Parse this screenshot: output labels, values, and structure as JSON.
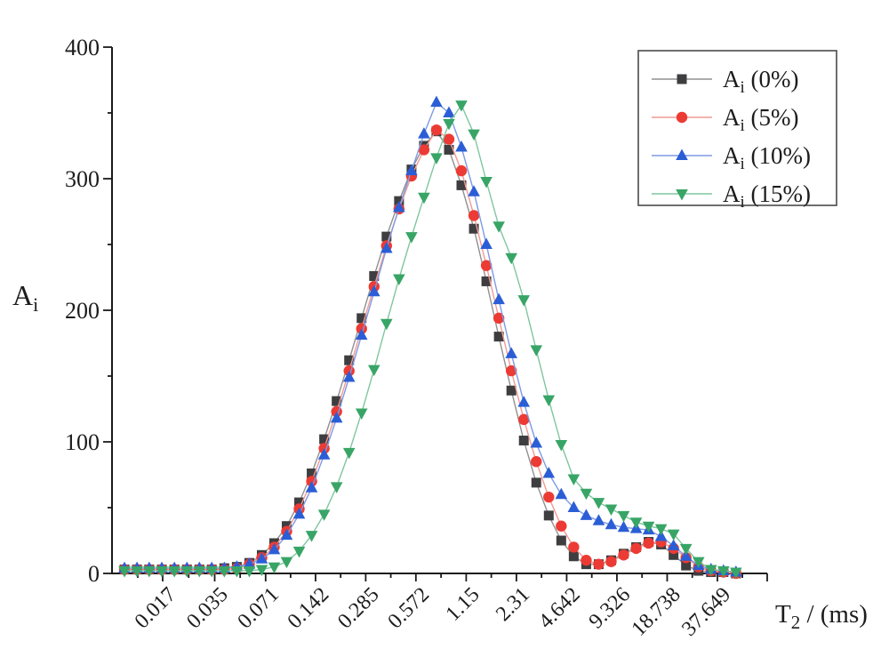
{
  "figure": {
    "background": "#ffffff",
    "axis_color": "#1a1a1a"
  },
  "chart_data": {
    "type": "line",
    "title": "",
    "legend_position": "top-right",
    "grid": false,
    "x_axis": {
      "label_base": "T",
      "label_sub": "2",
      "label_rest": " / (ms)",
      "scale": "log",
      "tick_labels": [
        "0.017",
        "0.035",
        "0.071",
        "0.142",
        "0.285",
        "0.572",
        "1.15",
        "2.31",
        "4.642",
        "9.326",
        "18.738",
        "37.649"
      ],
      "tick_values": [
        0.017,
        0.035,
        0.071,
        0.142,
        0.285,
        0.572,
        1.15,
        2.31,
        4.642,
        9.326,
        18.738,
        37.649
      ]
    },
    "y_axis": {
      "label_base": "A",
      "label_sub": "i",
      "range": [
        0,
        400
      ],
      "major_ticks": [
        0,
        100,
        200,
        300,
        400
      ],
      "minor_ticks": [
        50,
        150,
        250,
        350
      ]
    },
    "x": [
      0.01,
      0.0119,
      0.0141,
      0.0168,
      0.02,
      0.0238,
      0.0283,
      0.0336,
      0.04,
      0.0476,
      0.0566,
      0.0673,
      0.08,
      0.0951,
      0.1131,
      0.1345,
      0.16,
      0.1903,
      0.2263,
      0.2691,
      0.32,
      0.3805,
      0.4525,
      0.5382,
      0.64,
      0.7611,
      0.9051,
      1.076,
      1.28,
      1.522,
      1.81,
      2.153,
      2.56,
      3.044,
      3.62,
      4.305,
      5.12,
      6.089,
      7.241,
      8.611,
      10.24,
      12.18,
      14.48,
      17.22,
      20.48,
      24.35,
      28.96,
      34.44,
      40.96,
      48.71
    ],
    "series": [
      {
        "name": "Ai (0%)",
        "label_base": "A",
        "label_sub": "i",
        "label_rest": " (0%)",
        "marker": "square",
        "marker_color": "#3e3e40",
        "line_color": "#909090",
        "values": [
          3,
          3,
          3,
          3,
          3,
          3,
          3,
          3,
          4,
          5,
          8,
          14,
          23,
          36,
          54,
          76,
          102,
          131,
          162,
          194,
          226,
          256,
          283,
          307,
          325,
          336,
          322,
          295,
          262,
          222,
          180,
          139,
          101,
          69,
          44,
          25,
          13,
          7,
          7,
          10,
          15,
          20,
          24,
          22,
          14,
          6,
          2,
          1,
          1,
          0
        ]
      },
      {
        "name": "Ai (5%)",
        "label_base": "A",
        "label_sub": "i",
        "label_rest": " (5%)",
        "marker": "circle",
        "marker_color": "#ec3b34",
        "line_color": "#f29a94",
        "values": [
          3,
          3,
          3,
          3,
          3,
          3,
          3,
          3,
          3,
          4,
          7,
          12,
          20,
          32,
          49,
          70,
          95,
          123,
          154,
          186,
          218,
          249,
          277,
          302,
          322,
          337,
          330,
          306,
          272,
          234,
          194,
          154,
          117,
          85,
          58,
          36,
          20,
          10,
          7,
          9,
          14,
          19,
          23,
          24,
          19,
          12,
          5,
          2,
          1,
          0
        ]
      },
      {
        "name": "Ai (10%)",
        "label_base": "A",
        "label_sub": "i",
        "label_rest": " (10%)",
        "marker": "triangle-up",
        "marker_color": "#2b5ed6",
        "line_color": "#7f9ae4",
        "values": [
          4,
          4,
          4,
          4,
          4,
          4,
          4,
          4,
          4,
          5,
          7,
          11,
          18,
          29,
          45,
          65,
          90,
          118,
          149,
          181,
          214,
          247,
          278,
          306,
          334,
          358,
          350,
          324,
          290,
          250,
          208,
          167,
          130,
          99,
          76,
          60,
          50,
          44,
          40,
          37,
          35,
          34,
          33,
          28,
          21,
          13,
          6,
          3,
          2,
          1
        ]
      },
      {
        "name": "Ai (15%)",
        "label_base": "A",
        "label_sub": "i",
        "label_rest": " (15%)",
        "marker": "triangle-down",
        "marker_color": "#38a566",
        "line_color": "#7fc6a0",
        "values": [
          2,
          2,
          2,
          2,
          2,
          2,
          2,
          2,
          2,
          2,
          2,
          3,
          5,
          9,
          17,
          29,
          45,
          66,
          92,
          122,
          155,
          190,
          224,
          256,
          286,
          316,
          342,
          356,
          334,
          298,
          264,
          240,
          208,
          170,
          132,
          98,
          72,
          61,
          54,
          49,
          44,
          39,
          36,
          34,
          30,
          19,
          9,
          3,
          2,
          1
        ]
      }
    ]
  }
}
